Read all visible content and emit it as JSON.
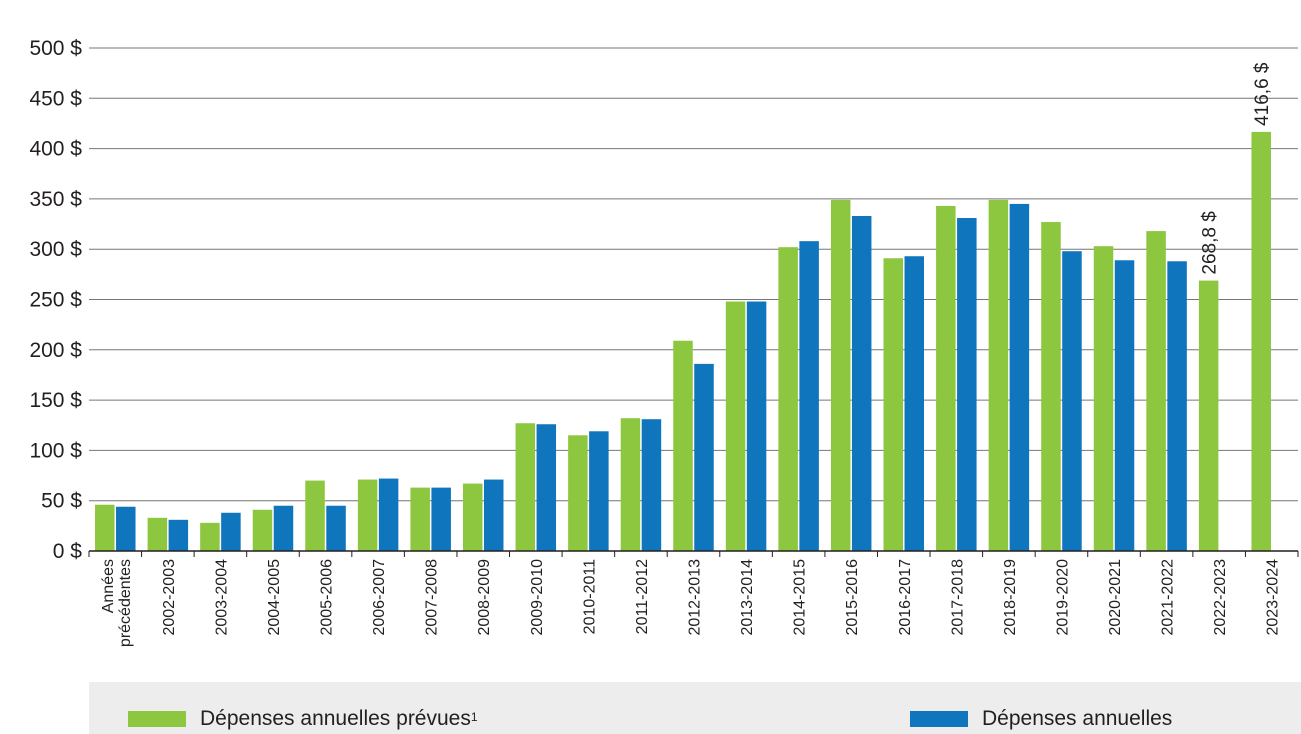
{
  "chart_data": {
    "type": "bar",
    "title": "",
    "xlabel": "",
    "ylabel": "",
    "ylim": [
      0,
      500
    ],
    "yticks": [
      0,
      50,
      100,
      150,
      200,
      250,
      300,
      350,
      400,
      450,
      500
    ],
    "ytick_labels": [
      "0 $",
      "50 $",
      "100 $",
      "150 $",
      "200 $",
      "250 $",
      "300 $",
      "350 $",
      "400 $",
      "450 $",
      "500 $"
    ],
    "grid": true,
    "categories": [
      [
        "Années",
        "précédentes"
      ],
      "2002-2003",
      "2003-2004",
      "2004-2005",
      "2005-2006",
      "2006-2007",
      "2007-2008",
      "2008-2009",
      "2009-2010",
      "2010-2011",
      "2011-2012",
      "2012-2013",
      "2013-2014",
      "2014-2015",
      "2015-2016",
      "2016-2017",
      "2017-2018",
      "2018-2019",
      "2019-2020",
      "2020-2021",
      "2021-2022",
      "2022-2023",
      "2023-2024"
    ],
    "series": [
      {
        "name": "Dépenses annuelles prévues",
        "name_sup": "1",
        "color": "#8dc63f",
        "values": [
          46,
          33,
          28,
          41,
          70,
          71,
          63,
          67,
          127,
          115,
          132,
          209,
          248,
          302,
          349,
          291,
          343,
          349,
          327,
          303,
          318,
          268.8,
          416.6
        ]
      },
      {
        "name": "Dépenses annuelles",
        "name_sup": "",
        "color": "#0f75bc",
        "values": [
          44,
          31,
          38,
          45,
          45,
          72,
          63,
          71,
          126,
          119,
          131,
          186,
          248,
          308,
          333,
          293,
          331,
          345,
          298,
          289,
          288,
          null,
          null
        ]
      }
    ],
    "annotations": [
      {
        "category_index": 21,
        "series_index": 0,
        "text": "268,8 $"
      },
      {
        "category_index": 22,
        "series_index": 0,
        "text": "416,6 $"
      }
    ],
    "legend_position": "bottom"
  }
}
